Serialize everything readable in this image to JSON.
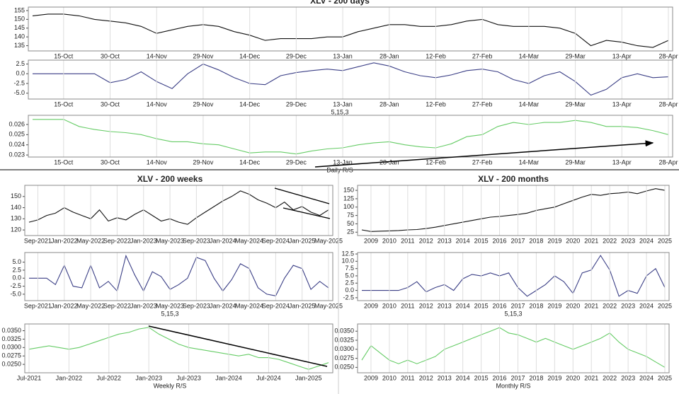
{
  "chart_data": [
    {
      "type": "line",
      "title": "XLV - 200 days",
      "color": "#111111",
      "grid": true,
      "categories": [
        null,
        null,
        "15-Oct",
        null,
        null,
        "30-Oct",
        null,
        null,
        "14-Nov",
        null,
        null,
        "29-Nov",
        null,
        null,
        "14-Dec",
        null,
        null,
        "29-Dec",
        null,
        null,
        "13-Jan",
        null,
        null,
        "28-Jan",
        null,
        null,
        "12-Feb",
        null,
        null,
        "27-Feb",
        null,
        null,
        "14-Mar",
        null,
        null,
        "29-Mar",
        null,
        null,
        "13-Apr",
        null,
        null,
        "28-Apr"
      ],
      "values": [
        152,
        153,
        153,
        152,
        150,
        149,
        148,
        146,
        142,
        144,
        146,
        147,
        146,
        143,
        141,
        138,
        139,
        139,
        139,
        140,
        140,
        143,
        145,
        147,
        147,
        146,
        146,
        147,
        149,
        150,
        147,
        146,
        146,
        146,
        145,
        142,
        135,
        138,
        137,
        135,
        134,
        138
      ],
      "ylim": [
        132,
        157
      ],
      "yticks": [
        155,
        150,
        145,
        140,
        135
      ]
    },
    {
      "type": "line",
      "xlabel": "5,15,3",
      "color": "#3b3f86",
      "grid": true,
      "categories": [
        null,
        null,
        "15-Oct",
        null,
        null,
        "30-Oct",
        null,
        null,
        "14-Nov",
        null,
        null,
        "29-Nov",
        null,
        null,
        "14-Dec",
        null,
        null,
        "29-Dec",
        null,
        null,
        "13-Jan",
        null,
        null,
        "28-Jan",
        null,
        null,
        "12-Feb",
        null,
        null,
        "27-Feb",
        null,
        null,
        "14-Mar",
        null,
        null,
        "29-Mar",
        null,
        null,
        "13-Apr",
        null,
        null,
        "28-Apr"
      ],
      "values": [
        0,
        0,
        0,
        0,
        0,
        -2.3,
        -1.5,
        0.5,
        -2,
        -3.8,
        0,
        2.5,
        1,
        -1,
        -2.5,
        -2.8,
        -0.5,
        0.3,
        0.8,
        1.2,
        0.8,
        1.8,
        2.8,
        2,
        0.5,
        -0.5,
        -1,
        -0.3,
        0.8,
        1.2,
        0.5,
        -1.5,
        -2.5,
        -0.5,
        0.5,
        -2,
        -5.5,
        -4,
        -1,
        0,
        -1,
        -0.8
      ],
      "ylim": [
        -6.5,
        3.5
      ],
      "yticks": [
        2.5,
        {
          "value": 0,
          "label": "0.0"
        },
        -2.5,
        {
          "value": -5,
          "label": "-5.0"
        }
      ]
    },
    {
      "type": "line",
      "xlabel": "Daily R/S",
      "color": "#66cc66",
      "grid": true,
      "categories": [
        null,
        null,
        "15-Oct",
        null,
        null,
        "30-Oct",
        null,
        null,
        "14-Nov",
        null,
        null,
        "29-Nov",
        null,
        null,
        "14-Dec",
        null,
        null,
        "29-Dec",
        null,
        null,
        "13-Jan",
        null,
        null,
        "28-Jan",
        null,
        null,
        "12-Feb",
        null,
        null,
        "27-Feb",
        null,
        null,
        "14-Mar",
        null,
        null,
        "29-Mar",
        null,
        null,
        "13-Apr",
        null,
        null,
        "28-Apr"
      ],
      "values": [
        0.0265,
        0.0265,
        0.0265,
        0.0258,
        0.0255,
        0.0253,
        0.0252,
        0.025,
        0.0246,
        0.0243,
        0.0243,
        0.0241,
        0.024,
        0.0236,
        0.0232,
        0.0233,
        0.0233,
        0.0231,
        0.0234,
        0.0236,
        0.0237,
        0.024,
        0.0242,
        0.0243,
        0.024,
        0.0238,
        0.0237,
        0.0241,
        0.0248,
        0.025,
        0.0258,
        0.0262,
        0.026,
        0.0262,
        0.0262,
        0.0264,
        0.0262,
        0.0258,
        0.0258,
        0.0257,
        0.0254,
        0.025
      ],
      "ylim": [
        0.0228,
        0.0269
      ],
      "yticks": [
        0.026,
        0.025,
        0.024,
        0.023
      ]
    },
    {
      "type": "line",
      "title": "XLV - 200 weeks",
      "color": "#111111",
      "grid": true,
      "categories": [
        null,
        "Sep-2021",
        null,
        null,
        "Jan-2022",
        null,
        null,
        "May-2022",
        null,
        null,
        "Sep-2022",
        null,
        null,
        "Jan-2023",
        null,
        null,
        "May-2023",
        null,
        null,
        "Sep-2023",
        null,
        null,
        "Jan-2024",
        null,
        null,
        "May-2024",
        null,
        null,
        "Sep-2024",
        null,
        null,
        "Jan-2025",
        null,
        null,
        "May-2025"
      ],
      "values": [
        127,
        129,
        133,
        135,
        140,
        136,
        133,
        130,
        138,
        128,
        131,
        129,
        134,
        138,
        133,
        128,
        130,
        127,
        125,
        131,
        136,
        141,
        146,
        150,
        155,
        152,
        147,
        144,
        140,
        145,
        138,
        141,
        136,
        133,
        138
      ],
      "ylim": [
        115,
        160
      ],
      "yticks": [
        150,
        140,
        130,
        120
      ]
    },
    {
      "type": "line",
      "xlabel": "5,15,3",
      "color": "#3b3f86",
      "grid": true,
      "categories": [
        null,
        "Sep-2021",
        null,
        null,
        "Jan-2022",
        null,
        null,
        "May-2022",
        null,
        null,
        "Sep-2022",
        null,
        null,
        "Jan-2023",
        null,
        null,
        "May-2023",
        null,
        null,
        "Sep-2023",
        null,
        null,
        "Jan-2024",
        null,
        null,
        "May-2024",
        null,
        null,
        "Sep-2024",
        null,
        null,
        "Jan-2025",
        null,
        null,
        "May-2025"
      ],
      "values": [
        0,
        0,
        0,
        -2,
        4,
        -2.5,
        -3,
        4,
        -3,
        -1,
        -4,
        7,
        1,
        -4,
        2,
        0.5,
        -3.5,
        -2,
        0,
        6.5,
        5.5,
        0,
        -4,
        -0.5,
        4.5,
        3,
        -3,
        -5,
        -5.5,
        0,
        4,
        3,
        -3.5,
        -1,
        -3
      ],
      "ylim": [
        -7,
        8
      ],
      "yticks": [
        {
          "value": 5,
          "label": "5.0"
        },
        2.5,
        {
          "value": 0,
          "label": "0.0"
        },
        -2.5,
        {
          "value": -5,
          "label": "-5.0"
        }
      ]
    },
    {
      "type": "line",
      "xlabel": "Weekly R/S",
      "color": "#66cc66",
      "grid": true,
      "categories": [
        "Jul-2021",
        null,
        null,
        null,
        "Jan-2022",
        null,
        null,
        null,
        "Jul-2022",
        null,
        null,
        null,
        "Jan-2023",
        null,
        null,
        null,
        "Jul-2023",
        null,
        null,
        null,
        "Jan-2024",
        null,
        null,
        null,
        "Jul-2024",
        null,
        null,
        null,
        "Jan-2025",
        null,
        null
      ],
      "values": [
        0.0295,
        0.03,
        0.0305,
        0.03,
        0.0295,
        0.03,
        0.031,
        0.032,
        0.033,
        0.034,
        0.0345,
        0.0355,
        0.036,
        0.034,
        0.0325,
        0.031,
        0.03,
        0.0295,
        0.029,
        0.0285,
        0.028,
        0.0275,
        0.028,
        0.027,
        0.027,
        0.0265,
        0.0255,
        0.0245,
        0.0235,
        0.0245,
        0.0255
      ],
      "ylim": [
        0.0225,
        0.037
      ],
      "yticks": [
        {
          "value": 0.035,
          "label": "0.0350"
        },
        {
          "value": 0.0325,
          "label": "0.0325"
        },
        {
          "value": 0.03,
          "label": "0.0300"
        },
        {
          "value": 0.0275,
          "label": "0.0275"
        },
        {
          "value": 0.025,
          "label": "0.0250"
        }
      ]
    },
    {
      "type": "line",
      "title": "XLV - 200 months",
      "color": "#111111",
      "grid": true,
      "categories": [
        null,
        "2009",
        null,
        "2010",
        null,
        "2011",
        null,
        "2012",
        null,
        "2013",
        null,
        "2014",
        null,
        "2015",
        null,
        "2016",
        null,
        "2017",
        null,
        "2018",
        null,
        "2019",
        null,
        "2020",
        null,
        "2021",
        null,
        "2022",
        null,
        "2023",
        null,
        "2024",
        null,
        "2025"
      ],
      "values": [
        32,
        27,
        28,
        29,
        30,
        32,
        33,
        36,
        40,
        45,
        50,
        55,
        60,
        65,
        70,
        72,
        75,
        78,
        82,
        90,
        95,
        100,
        110,
        120,
        130,
        138,
        135,
        140,
        142,
        145,
        140,
        148,
        155,
        150
      ],
      "ylim": [
        15,
        165
      ],
      "yticks": [
        150,
        125,
        100,
        75,
        50,
        25
      ]
    },
    {
      "type": "line",
      "xlabel": "5,15,3",
      "color": "#3b3f86",
      "grid": true,
      "categories": [
        null,
        "2009",
        null,
        "2010",
        null,
        "2011",
        null,
        "2012",
        null,
        "2013",
        null,
        "2014",
        null,
        "2015",
        null,
        "2016",
        null,
        "2017",
        null,
        "2018",
        null,
        "2019",
        null,
        "2020",
        null,
        "2021",
        null,
        "2022",
        null,
        "2023",
        null,
        "2024",
        null,
        "2025"
      ],
      "values": [
        0,
        0,
        0,
        0,
        0,
        1,
        3,
        -0.5,
        1,
        2,
        0,
        4,
        5.5,
        5,
        6,
        5,
        6,
        1,
        -2,
        0,
        2,
        5,
        3,
        -1,
        6,
        7,
        12,
        7,
        -2,
        0,
        -1,
        5,
        7.5,
        1
      ],
      "ylim": [
        -3.5,
        13
      ],
      "yticks": [
        12.5,
        {
          "value": 10,
          "label": "10.0"
        },
        7.5,
        {
          "value": 5,
          "label": "5.0"
        },
        2.5,
        {
          "value": 0,
          "label": "0.0"
        },
        -2.5
      ]
    },
    {
      "type": "line",
      "xlabel": "Monthly R/S",
      "color": "#66cc66",
      "grid": true,
      "categories": [
        null,
        "2009",
        null,
        "2010",
        null,
        "2011",
        null,
        "2012",
        null,
        "2013",
        null,
        "2014",
        null,
        "2015",
        null,
        "2016",
        null,
        "2017",
        null,
        "2018",
        null,
        "2019",
        null,
        "2020",
        null,
        "2021",
        null,
        "2022",
        null,
        "2023",
        null,
        "2024",
        null,
        "2025"
      ],
      "values": [
        0.027,
        0.031,
        0.029,
        0.027,
        0.026,
        0.027,
        0.026,
        0.027,
        0.028,
        0.03,
        0.031,
        0.032,
        0.033,
        0.034,
        0.035,
        0.036,
        0.0345,
        0.034,
        0.033,
        0.032,
        0.033,
        0.032,
        0.031,
        0.03,
        0.031,
        0.032,
        0.033,
        0.0345,
        0.032,
        0.03,
        0.029,
        0.028,
        0.0265,
        0.025
      ],
      "ylim": [
        0.0235,
        0.037
      ],
      "yticks": [
        {
          "value": 0.035,
          "label": "0.0350"
        },
        {
          "value": 0.0325,
          "label": "0.0325"
        },
        {
          "value": 0.03,
          "label": "0.0300"
        },
        {
          "value": 0.0275,
          "label": "0.0275"
        },
        {
          "value": 0.025,
          "label": "0.0250"
        }
      ]
    }
  ]
}
